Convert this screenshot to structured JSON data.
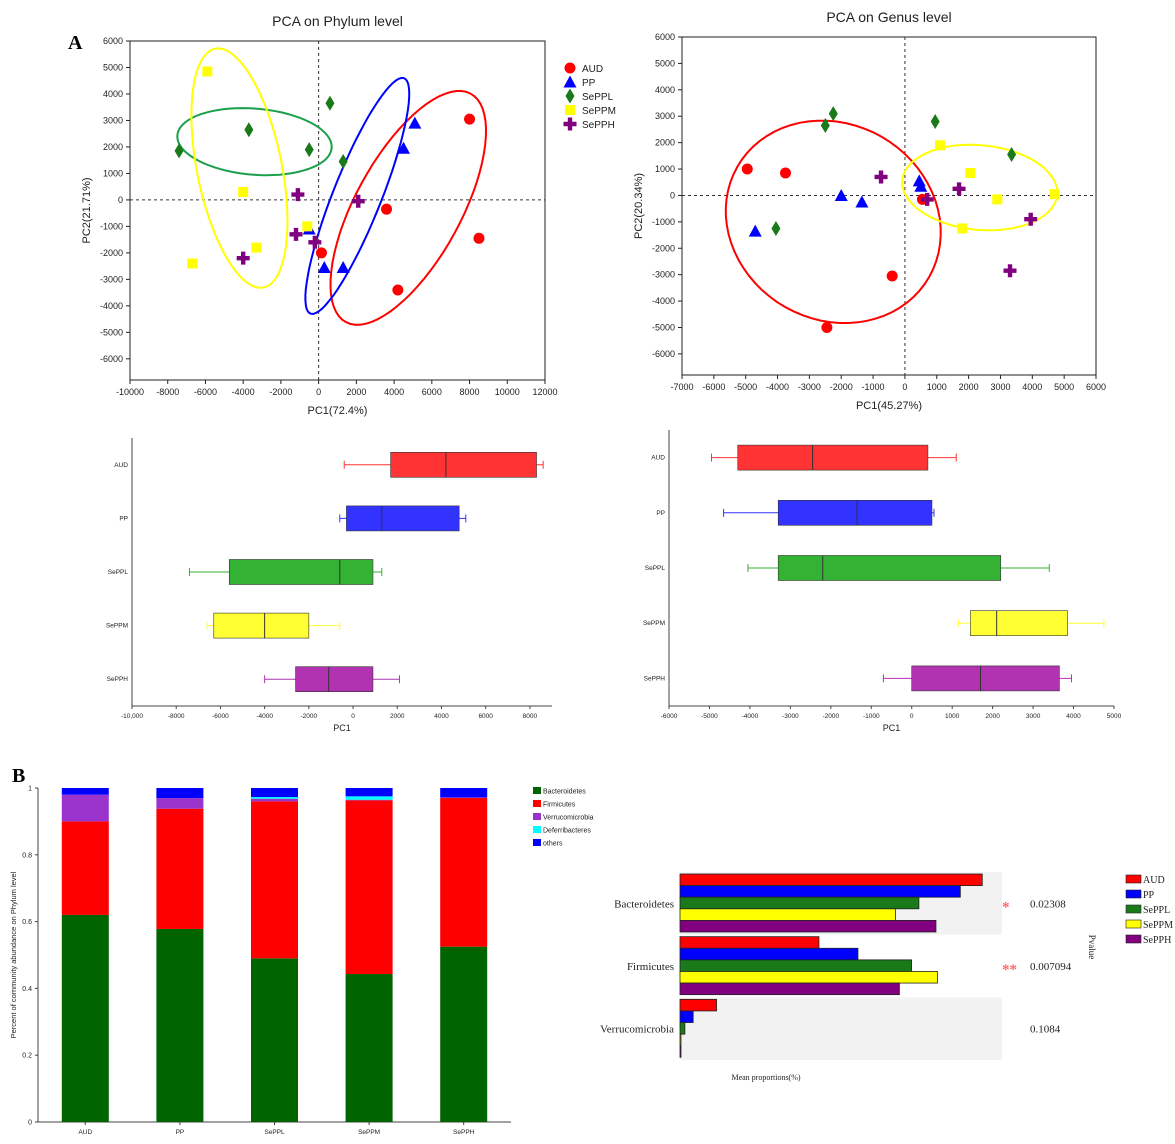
{
  "panel_labels": {
    "a": "A",
    "b": "B"
  },
  "colors": {
    "AUD": "#ff0000",
    "PP": "#0000ff",
    "SePPL": "#1a7a1a",
    "SePPM": "#ffff00",
    "SePPH": "#800080",
    "box_AUD": "#ff3333",
    "box_PP": "#3333ff",
    "box_SePPL": "#33b233",
    "box_SePPM": "#ffff33",
    "box_SePPH": "#b233b2",
    "ellipse_SePPL": "#1aa04a",
    "Bacteroidetes": "#006400",
    "Firmicutes": "#ff0000",
    "Verrucomicrobia": "#9933cc",
    "Deferribacteres": "#00ffff",
    "others": "#0000ff",
    "sig_star": "#ff6666",
    "bar_bg": "#f2f2f2"
  },
  "chart_data": [
    {
      "type": "scatter",
      "title": "PCA on Phylum level",
      "xlabel": "PC1(72.4%)",
      "ylabel": "PC2(21.71%)",
      "xlim": [
        -10000,
        12000
      ],
      "ylim": [
        -6800,
        6000
      ],
      "xticks": [
        -10000,
        -8000,
        -6000,
        -4000,
        -2000,
        0,
        2000,
        4000,
        6000,
        8000,
        10000,
        12000
      ],
      "yticks": [
        -6000,
        -5000,
        -4000,
        -3000,
        -2000,
        -1000,
        0,
        1000,
        2000,
        3000,
        4000,
        5000,
        6000
      ],
      "legend": [
        "AUD",
        "PP",
        "SePPL",
        "SePPM",
        "SePPH"
      ],
      "legend_position": "top-right",
      "reference_lines": "dashed lines at x=0 and y=0",
      "series": [
        {
          "name": "AUD",
          "marker": "circle",
          "points": [
            [
              8000,
              3050
            ],
            [
              8500,
              -1450
            ],
            [
              3600,
              -350
            ],
            [
              4200,
              -3400
            ],
            [
              150,
              -2000
            ]
          ]
        },
        {
          "name": "PP",
          "marker": "triangle",
          "points": [
            [
              5100,
              2900
            ],
            [
              4500,
              1950
            ],
            [
              1300,
              -2550
            ],
            [
              300,
              -2550
            ],
            [
              -500,
              -1100
            ]
          ]
        },
        {
          "name": "SePPL",
          "marker": "diamond",
          "points": [
            [
              -7400,
              1850
            ],
            [
              -3700,
              2650
            ],
            [
              600,
              3650
            ],
            [
              -500,
              1900
            ],
            [
              1300,
              1450
            ]
          ]
        },
        {
          "name": "SePPM",
          "marker": "square",
          "points": [
            [
              -5900,
              4850
            ],
            [
              -4000,
              300
            ],
            [
              -3300,
              -1800
            ],
            [
              -6700,
              -2400
            ],
            [
              -600,
              -1000
            ]
          ]
        },
        {
          "name": "SePPH",
          "marker": "cross",
          "points": [
            [
              -1100,
              200
            ],
            [
              2100,
              -50
            ],
            [
              -1200,
              -1300
            ],
            [
              -200,
              -1600
            ],
            [
              -4000,
              -2200
            ]
          ]
        }
      ],
      "ellipses": [
        {
          "group": "AUD",
          "cx": 4750,
          "cy": -300,
          "rx": 5500,
          "ry": 2500,
          "angle_deg": 48
        },
        {
          "group": "PP",
          "cx": 2050,
          "cy": 150,
          "rx": 5100,
          "ry": 1200,
          "angle_deg": 60
        },
        {
          "group": "SePPL",
          "cx": -3400,
          "cy": 2200,
          "rx": 4100,
          "ry": 1250,
          "angle_deg": -3
        },
        {
          "group": "SePPM",
          "cx": -4200,
          "cy": 1200,
          "rx": 4700,
          "ry": 2200,
          "angle_deg": -72
        }
      ]
    },
    {
      "type": "scatter",
      "title": "PCA on Genus level",
      "xlabel": "PC1(45.27%)",
      "ylabel": "PC2(20.34%)",
      "xlim": [
        -7000,
        6000
      ],
      "ylim": [
        -6800,
        6000
      ],
      "xticks": [
        -7000,
        -6000,
        -5000,
        -4000,
        -3000,
        -2000,
        -1000,
        0,
        1000,
        2000,
        3000,
        4000,
        5000,
        6000
      ],
      "yticks": [
        -6000,
        -5000,
        -4000,
        -3000,
        -2000,
        -1000,
        0,
        1000,
        2000,
        3000,
        4000,
        5000,
        6000
      ],
      "reference_lines": "dashed lines at x=0 and y=0",
      "series": [
        {
          "name": "AUD",
          "marker": "circle",
          "points": [
            [
              -4950,
              1000
            ],
            [
              -3750,
              850
            ],
            [
              -2450,
              -5000
            ],
            [
              -400,
              -3050
            ],
            [
              550,
              -150
            ]
          ]
        },
        {
          "name": "PP",
          "marker": "triangle",
          "points": [
            [
              -4700,
              -1350
            ],
            [
              -2000,
              0
            ],
            [
              -1350,
              -250
            ],
            [
              450,
              550
            ],
            [
              500,
              350
            ]
          ]
        },
        {
          "name": "SePPL",
          "marker": "diamond",
          "points": [
            [
              -4050,
              -1250
            ],
            [
              -2500,
              2650
            ],
            [
              -2250,
              3100
            ],
            [
              950,
              2800
            ],
            [
              3350,
              1550
            ]
          ]
        },
        {
          "name": "SePPM",
          "marker": "square",
          "points": [
            [
              1100,
              1900
            ],
            [
              2050,
              850
            ],
            [
              1800,
              -1250
            ],
            [
              2900,
              -150
            ],
            [
              4700,
              50
            ]
          ]
        },
        {
          "name": "SePPH",
          "marker": "cross",
          "points": [
            [
              -750,
              700
            ],
            [
              700,
              -150
            ],
            [
              1700,
              250
            ],
            [
              3950,
              -900
            ],
            [
              3300,
              -2850
            ]
          ]
        }
      ],
      "ellipses": [
        {
          "group": "AUD",
          "cx": -2250,
          "cy": -1000,
          "rx": 3300,
          "ry": 3900,
          "angle_deg": 20
        },
        {
          "group": "SePPM",
          "cx": 2350,
          "cy": 300,
          "rx": 2450,
          "ry": 1600,
          "angle_deg": -8
        }
      ]
    },
    {
      "type": "boxplot",
      "xlabel": "PC1",
      "xlim": [
        -10000,
        9000
      ],
      "xticks": [
        "-10,000",
        "-8000",
        "-6000",
        "-4000",
        "-2000",
        "0",
        "2000",
        "4000",
        "6000",
        "8000"
      ],
      "xtick_values": [
        -10000,
        -8000,
        -6000,
        -4000,
        -2000,
        0,
        2000,
        4000,
        6000,
        8000
      ],
      "groups": [
        {
          "name": "AUD",
          "whisker_low": -400,
          "q1": 1700,
          "median": 4200,
          "q3": 8300,
          "whisker_high": 8600
        },
        {
          "name": "PP",
          "whisker_low": -600,
          "q1": -300,
          "median": 1300,
          "q3": 4800,
          "whisker_high": 5100
        },
        {
          "name": "SePPL",
          "whisker_low": -7400,
          "q1": -5600,
          "median": -600,
          "q3": 900,
          "whisker_high": 1300
        },
        {
          "name": "SePPM",
          "whisker_low": -6600,
          "q1": -6300,
          "median": -4000,
          "q3": -2000,
          "whisker_high": -600
        },
        {
          "name": "SePPH",
          "whisker_low": -4000,
          "q1": -2600,
          "median": -1100,
          "q3": 900,
          "whisker_high": 2100
        }
      ]
    },
    {
      "type": "boxplot",
      "xlabel": "PC1",
      "xlim": [
        -6000,
        5000
      ],
      "xticks": [
        "-6000",
        "-5000",
        "-4000",
        "-3000",
        "-2000",
        "-1000",
        "0",
        "1000",
        "2000",
        "3000",
        "4000",
        "5000"
      ],
      "xtick_values": [
        -6000,
        -5000,
        -4000,
        -3000,
        -2000,
        -1000,
        0,
        1000,
        2000,
        3000,
        4000,
        5000
      ],
      "groups": [
        {
          "name": "AUD",
          "whisker_low": -4950,
          "q1": -4300,
          "median": -2450,
          "q3": 400,
          "whisker_high": 1100
        },
        {
          "name": "PP",
          "whisker_low": -4650,
          "q1": -3300,
          "median": -1350,
          "q3": 500,
          "whisker_high": 550
        },
        {
          "name": "SePPL",
          "whisker_low": -4050,
          "q1": -3300,
          "median": -2200,
          "q3": 2200,
          "whisker_high": 3400
        },
        {
          "name": "SePPM",
          "whisker_low": 1150,
          "q1": 1450,
          "median": 2100,
          "q3": 3850,
          "whisker_high": 4750
        },
        {
          "name": "SePPH",
          "whisker_low": -700,
          "q1": 0,
          "median": 1700,
          "q3": 3650,
          "whisker_high": 3950
        }
      ]
    },
    {
      "type": "bar",
      "stacked": true,
      "ylabel": "Percent of community abundance on Phylum level",
      "ylim": [
        0,
        1
      ],
      "yticks": [
        "0",
        "0.2",
        "0.4",
        "0.6",
        "0.8",
        "1"
      ],
      "ytick_values": [
        0,
        0.2,
        0.4,
        0.6,
        0.8,
        1
      ],
      "categories": [
        "AUD",
        "PP",
        "SePPL",
        "SePPM",
        "SePPH"
      ],
      "legend_position": "top-right",
      "series": [
        {
          "name": "Bacteroidetes",
          "values": [
            0.62,
            0.578,
            0.49,
            0.443,
            0.525
          ]
        },
        {
          "name": "Firmicutes",
          "values": [
            0.28,
            0.36,
            0.47,
            0.52,
            0.445
          ]
        },
        {
          "name": "Verrucomicrobia",
          "values": [
            0.08,
            0.032,
            0.008,
            0.002,
            0.002
          ]
        },
        {
          "name": "Deferribacteres",
          "values": [
            0.0,
            0.0,
            0.005,
            0.01,
            0.0
          ]
        },
        {
          "name": "others",
          "values": [
            0.02,
            0.03,
            0.027,
            0.025,
            0.028
          ]
        }
      ]
    },
    {
      "type": "bar",
      "orientation": "horizontal",
      "xlabel": "Mean proportions(%)",
      "side_label": "Pvalue",
      "categories": [
        "Bacteroidetes",
        "Firmicutes",
        "Verrucomicrobia"
      ],
      "pvalues": [
        "0.02308",
        "0.007094",
        "0.1084"
      ],
      "significance": [
        "*",
        "**",
        ""
      ],
      "legend": [
        "AUD",
        "PP",
        "SePPL",
        "SePPM",
        "SePPH"
      ],
      "legend_position": "right",
      "series": [
        {
          "name": "AUD",
          "values": [
            62.0,
            28.5,
            7.5
          ]
        },
        {
          "name": "PP",
          "values": [
            57.5,
            36.5,
            2.7
          ]
        },
        {
          "name": "SePPL",
          "values": [
            49.0,
            47.5,
            1.0
          ]
        },
        {
          "name": "SePPM",
          "values": [
            44.2,
            52.8,
            0.2
          ]
        },
        {
          "name": "SePPH",
          "values": [
            52.5,
            45.0,
            0.2
          ]
        }
      ]
    }
  ]
}
